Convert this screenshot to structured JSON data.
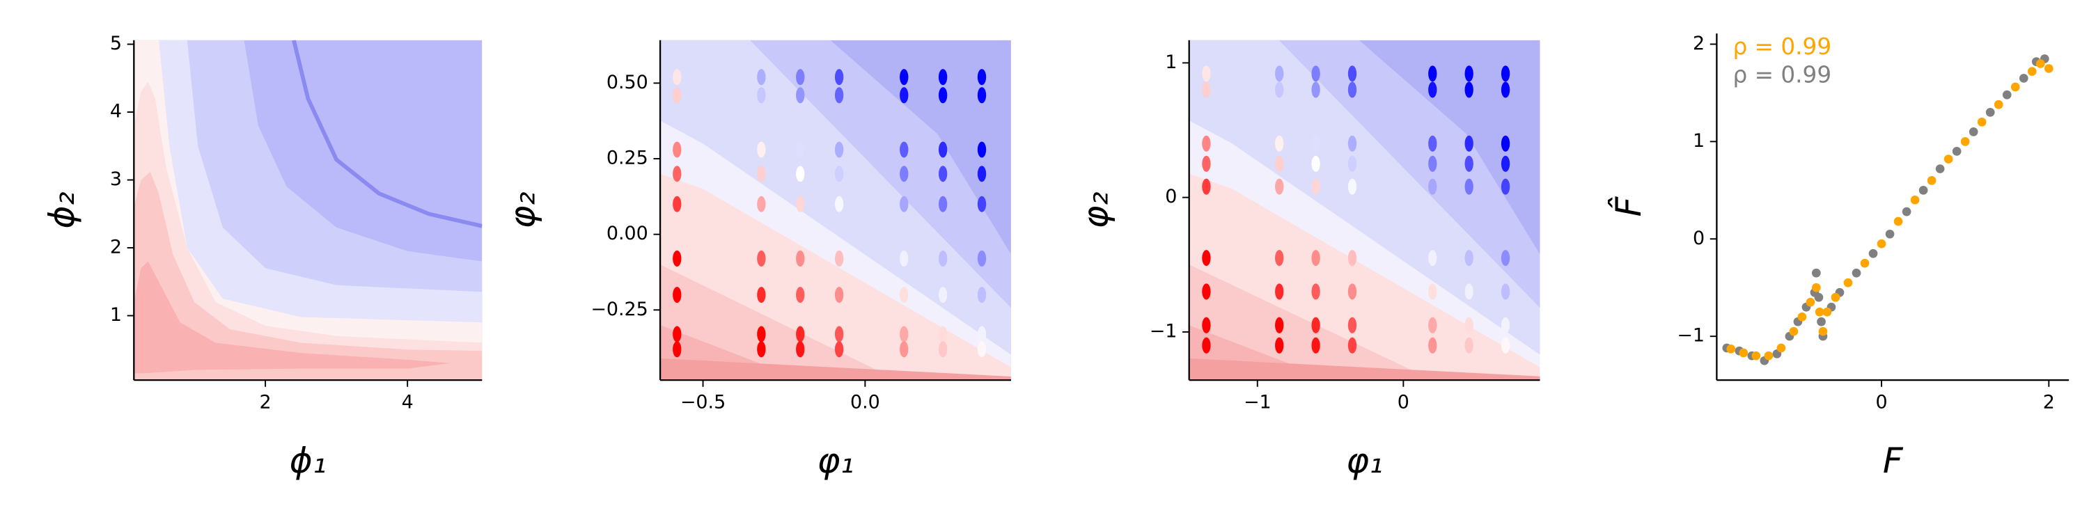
{
  "chart_data": [
    {
      "type": "contour",
      "xlabel": "ϕ₁",
      "ylabel": "ϕ₂",
      "xlim": [
        0.15,
        5.05
      ],
      "ylim": [
        0.05,
        5.06
      ],
      "xticks": [
        2,
        4
      ],
      "yticks": [
        1,
        2,
        3,
        4,
        5
      ],
      "background": "#babafa",
      "contours": [
        {
          "color": "#cfcffb",
          "x": [
            0.15,
            1.7,
            1.9,
            2.3,
            3,
            4,
            5.05,
            5.05,
            0.15
          ],
          "y": [
            5.06,
            5.06,
            3.8,
            2.9,
            2.3,
            1.95,
            1.8,
            0.05,
            0.05
          ]
        },
        {
          "color": "#e4e4fc",
          "x": [
            0.15,
            0.9,
            1.05,
            1.4,
            2,
            3,
            5.05,
            5.05,
            0.15
          ],
          "y": [
            5.06,
            5.06,
            3.5,
            2.3,
            1.7,
            1.45,
            1.35,
            0.05,
            0.05
          ]
        },
        {
          "color": "#fdf0f0",
          "x": [
            0.15,
            0.5,
            0.65,
            0.9,
            1.4,
            2.5,
            5.05,
            5.05,
            0.15
          ],
          "y": [
            5.06,
            5.06,
            3.5,
            2,
            1.25,
            0.98,
            0.9,
            0.05,
            0.05
          ]
        },
        {
          "color": "#fde0e0",
          "x": [
            0.15,
            0.25,
            0.35,
            0.45,
            0.6,
            0.9,
            1.3,
            2,
            3,
            5.05,
            5.05,
            0.15
          ],
          "y": [
            3.8,
            4.3,
            4.45,
            4.2,
            3.2,
            2,
            1.2,
            0.85,
            0.7,
            0.6,
            0.05,
            0.05
          ]
        },
        {
          "color": "#fcc9c9",
          "x": [
            0.15,
            0.25,
            0.38,
            0.5,
            0.7,
            1,
            1.5,
            2.5,
            4,
            5.05,
            5.05,
            0.15
          ],
          "y": [
            2.6,
            3,
            3.12,
            2.8,
            1.9,
            1.2,
            0.8,
            0.6,
            0.5,
            0.48,
            0.05,
            0.05
          ]
        },
        {
          "color": "#f9b1b1",
          "x": [
            0.15,
            0.25,
            0.35,
            0.5,
            0.8,
            1.3,
            2.5,
            4,
            4.6,
            4,
            2.5,
            1,
            0.3,
            0.15
          ],
          "y": [
            1.2,
            1.7,
            1.8,
            1.5,
            0.9,
            0.6,
            0.45,
            0.35,
            0.3,
            0.22,
            0.22,
            0.2,
            0.15,
            0.15
          ]
        }
      ],
      "lines": [
        {
          "color": "#8a8af0",
          "x": [
            2.4,
            2.6,
            3,
            3.6,
            4.3,
            5.05
          ],
          "y": [
            5.06,
            4.2,
            3.3,
            2.8,
            2.5,
            2.32
          ]
        }
      ]
    },
    {
      "type": "contour",
      "xlabel": "φ₁",
      "ylabel": "φ₂",
      "xlim": [
        -0.632,
        0.45
      ],
      "ylim": [
        -0.482,
        0.642
      ],
      "xticks": [
        {
          "value": -0.5,
          "label": "−0.5"
        },
        {
          "value": 0,
          "label": "0.0"
        }
      ],
      "yticks": [
        {
          "value": 0.5,
          "label": "0.50"
        },
        {
          "value": 0.25,
          "label": "0.25"
        },
        {
          "value": 0,
          "label": "0.00"
        },
        {
          "value": -0.25,
          "label": "−0.25"
        }
      ],
      "background": "#b2b2f7",
      "contours": [
        {
          "color": "#c8c8fa",
          "x": [
            -0.632,
            -0.107,
            0.223,
            0.45,
            0.45,
            -0.632
          ],
          "y": [
            0.642,
            0.642,
            0.332,
            -0.066,
            -0.482,
            -0.482
          ]
        },
        {
          "color": "#dcdcfb",
          "x": [
            -0.632,
            -0.355,
            0.45,
            0.45,
            -0.632
          ],
          "y": [
            0.642,
            0.642,
            -0.243,
            -0.482,
            -0.482
          ]
        },
        {
          "color": "#f2f0fc",
          "x": [
            -0.632,
            -0.5,
            0.45,
            0.45,
            -0.632
          ],
          "y": [
            0.376,
            0.3,
            -0.398,
            -0.482,
            -0.482
          ]
        },
        {
          "color": "#fde0e0",
          "x": [
            -0.632,
            -0.5,
            0.45,
            0.45,
            -0.632
          ],
          "y": [
            0.2,
            0.15,
            -0.44,
            -0.482,
            -0.482
          ]
        },
        {
          "color": "#fbcaca",
          "x": [
            -0.632,
            0.1,
            -0.632
          ],
          "y": [
            -0.1,
            -0.482,
            -0.482
          ]
        },
        {
          "color": "#f8b4b4",
          "x": [
            -0.632,
            -0.19,
            -0.632
          ],
          "y": [
            -0.3,
            -0.482,
            -0.482
          ]
        },
        {
          "color": "#f5a0a0",
          "x": [
            -0.632,
            0.45,
            0.45,
            -0.632
          ],
          "y": [
            -0.41,
            -0.47,
            -0.482,
            -0.482
          ]
        }
      ],
      "points": {
        "x": [
          -0.58,
          -0.32,
          -0.2,
          -0.08,
          0.12,
          0.24,
          0.36
        ],
        "y": [
          0.52,
          0.46,
          0.28,
          0.2,
          0.1,
          -0.08,
          -0.2,
          -0.33,
          -0.38
        ],
        "colormap": [
          "#ff0000",
          "#ffffff",
          "#0000ff"
        ],
        "clim": [
          -1,
          1
        ],
        "values": [
          [
            -0.1,
            0.32,
            0.51,
            0.7,
            1,
            1,
            1
          ],
          [
            -0.19,
            0.22,
            0.42,
            0.61,
            0.93,
            1,
            1
          ],
          [
            -0.48,
            -0.06,
            0.13,
            0.32,
            0.64,
            0.83,
            1
          ],
          [
            -0.61,
            -0.19,
            0,
            0.19,
            0.51,
            0.7,
            0.9
          ],
          [
            -0.77,
            -0.35,
            -0.16,
            0.03,
            0.35,
            0.54,
            0.74
          ],
          [
            -1,
            -0.64,
            -0.45,
            -0.26,
            0.06,
            0.26,
            0.45
          ],
          [
            -1,
            -0.83,
            -0.64,
            -0.45,
            -0.13,
            0.06,
            0.26
          ],
          [
            -1,
            -1,
            -0.85,
            -0.66,
            -0.34,
            -0.14,
            0.05
          ],
          [
            -1,
            -1,
            -0.93,
            -0.74,
            -0.42,
            -0.22,
            -0.03
          ]
        ]
      }
    },
    {
      "type": "contour",
      "xlabel": "φ₁",
      "ylabel": "φ₂",
      "xlim": [
        -1.468,
        0.936
      ],
      "ylim": [
        -1.358,
        1.169
      ],
      "xticks": [
        {
          "value": -1,
          "label": "−1"
        },
        0
      ],
      "yticks": [
        {
          "value": -1,
          "label": "−1"
        },
        0,
        1
      ],
      "background": "#b2b2f7",
      "contours": [
        {
          "color": "#c8c8fa",
          "x": [
            -1.468,
            -0.303,
            0.431,
            0.936,
            0.936,
            -1.468
          ],
          "y": [
            1.169,
            1.169,
            0.473,
            -0.423,
            -1.358,
            -1.358
          ]
        },
        {
          "color": "#dcdcfb",
          "x": [
            -1.468,
            -0.853,
            0.936,
            0.936,
            -1.468
          ],
          "y": [
            1.169,
            1.169,
            -0.82,
            -1.358,
            -1.358
          ]
        },
        {
          "color": "#f2f0fc",
          "x": [
            -1.468,
            -1.174,
            0.936,
            0.936,
            -1.468
          ],
          "y": [
            0.572,
            0.401,
            -1.169,
            -1.358,
            -1.358
          ]
        },
        {
          "color": "#fde0e0",
          "x": [
            -1.468,
            -1.174,
            0.936,
            0.936,
            -1.468
          ],
          "y": [
            0.176,
            0.064,
            -1.263,
            -1.358,
            -1.358
          ]
        },
        {
          "color": "#fbcaca",
          "x": [
            -1.468,
            0.202,
            -1.468
          ],
          "y": [
            -0.499,
            -1.358,
            -1.358
          ]
        },
        {
          "color": "#f8b4b4",
          "x": [
            -1.468,
            -0.486,
            -1.468
          ],
          "y": [
            -0.95,
            -1.358,
            -1.358
          ]
        },
        {
          "color": "#f5a0a0",
          "x": [
            -1.468,
            0.936,
            0.936,
            -1.468
          ],
          "y": [
            -1.196,
            -1.33,
            -1.358,
            -1.358
          ]
        }
      ],
      "points": {
        "x": [
          -1.35,
          -0.85,
          -0.6,
          -0.35,
          0.2,
          0.45,
          0.7
        ],
        "y": [
          0.92,
          0.8,
          0.4,
          0.25,
          0.08,
          -0.45,
          -0.7,
          -0.95,
          -1.1
        ],
        "colormap": [
          "#ff0000",
          "#ffffff",
          "#0000ff"
        ],
        "clim": [
          -1,
          1
        ],
        "values": [
          [
            -0.1,
            0.32,
            0.51,
            0.7,
            1,
            1,
            1
          ],
          [
            -0.19,
            0.22,
            0.42,
            0.61,
            0.93,
            1,
            1
          ],
          [
            -0.48,
            -0.06,
            0.13,
            0.32,
            0.64,
            0.83,
            1
          ],
          [
            -0.61,
            -0.19,
            0,
            0.19,
            0.51,
            0.7,
            0.9
          ],
          [
            -0.77,
            -0.35,
            -0.16,
            0.03,
            0.35,
            0.54,
            0.74
          ],
          [
            -1,
            -0.64,
            -0.45,
            -0.26,
            0.06,
            0.26,
            0.45
          ],
          [
            -1,
            -0.83,
            -0.64,
            -0.45,
            -0.13,
            0.06,
            0.26
          ],
          [
            -1,
            -1,
            -0.85,
            -0.66,
            -0.34,
            -0.14,
            0.05
          ],
          [
            -1,
            -1,
            -0.93,
            -0.74,
            -0.42,
            -0.22,
            -0.03
          ]
        ]
      }
    },
    {
      "type": "scatter",
      "xlabel": "F",
      "ylabel": "F̂",
      "xlim": [
        -1.97,
        2.24
      ],
      "ylim": [
        -1.45,
        2.11
      ],
      "xticks": [
        0,
        2
      ],
      "yticks": [
        {
          "value": -1,
          "label": "−1"
        },
        0,
        1,
        2
      ],
      "series": [
        {
          "color": "#808080",
          "x": [
            -1.85,
            -1.7,
            -1.55,
            -1.4,
            -1.25,
            -1.1,
            -1.0,
            -0.9,
            -0.8,
            -0.78,
            -0.75,
            -0.72,
            -0.7,
            -0.6,
            -0.5,
            -0.3,
            -0.1,
            0.1,
            0.3,
            0.5,
            0.7,
            0.9,
            1.1,
            1.3,
            1.5,
            1.7,
            1.85,
            1.95
          ],
          "y": [
            -1.12,
            -1.15,
            -1.2,
            -1.25,
            -1.18,
            -1.0,
            -0.85,
            -0.7,
            -0.55,
            -0.35,
            -0.6,
            -0.85,
            -1.0,
            -0.7,
            -0.55,
            -0.35,
            -0.15,
            0.05,
            0.28,
            0.5,
            0.72,
            0.9,
            1.1,
            1.3,
            1.48,
            1.65,
            1.82,
            1.85
          ]
        },
        {
          "color": "#ffa500",
          "x": [
            -1.8,
            -1.65,
            -1.5,
            -1.35,
            -1.2,
            -1.05,
            -0.95,
            -0.85,
            -0.78,
            -0.74,
            -0.7,
            -0.65,
            -0.55,
            -0.4,
            -0.2,
            0,
            0.2,
            0.4,
            0.6,
            0.8,
            1.0,
            1.2,
            1.4,
            1.6,
            1.8,
            1.9,
            2.0
          ],
          "y": [
            -1.13,
            -1.17,
            -1.2,
            -1.2,
            -1.12,
            -0.95,
            -0.8,
            -0.65,
            -0.5,
            -0.75,
            -0.95,
            -0.75,
            -0.6,
            -0.45,
            -0.25,
            -0.05,
            0.18,
            0.4,
            0.6,
            0.82,
            1.0,
            1.2,
            1.38,
            1.56,
            1.72,
            1.8,
            1.75
          ]
        }
      ],
      "annotations": [
        {
          "text": "ρ = 0.99",
          "color": "#ffa500"
        },
        {
          "text": "ρ = 0.99",
          "color": "#808080"
        }
      ]
    }
  ]
}
